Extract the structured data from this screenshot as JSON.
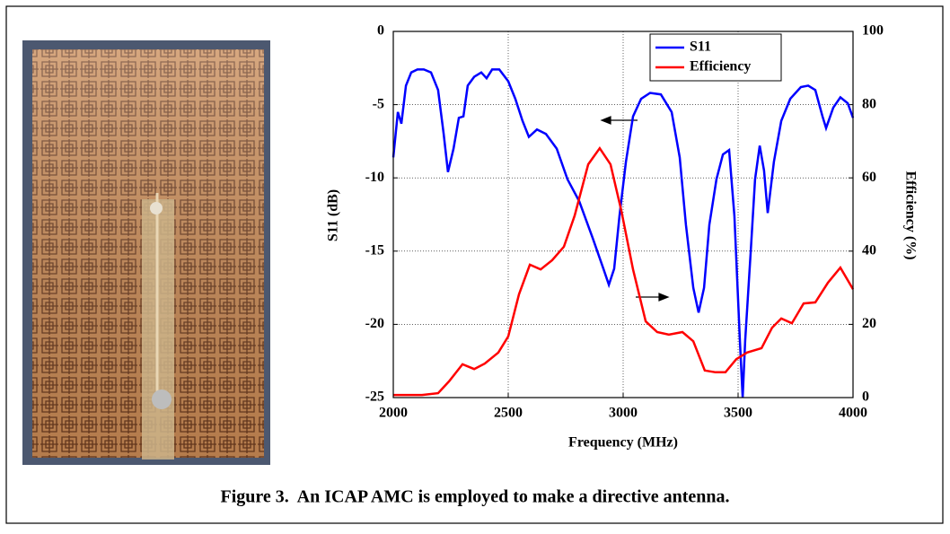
{
  "chart_data": {
    "type": "line",
    "xlabel": "Frequency (MHz)",
    "ylabel": "S11 (dB)",
    "y2label": "Efficiency (%)",
    "xlim": [
      2000,
      4000
    ],
    "xticks": [
      2000,
      2500,
      3000,
      3500,
      4000
    ],
    "ylim": [
      -25,
      0
    ],
    "yticks": [
      0,
      -5,
      -10,
      -15,
      -20,
      -25
    ],
    "y2lim": [
      0,
      100
    ],
    "y2ticks": [
      0,
      20,
      40,
      60,
      80,
      100
    ],
    "grid": true,
    "legend": "top-right",
    "series": [
      {
        "name": "S11",
        "color": "#0000ff",
        "x": [
          2000,
          2020,
          2035,
          2055,
          2078,
          2105,
          2133,
          2164,
          2195,
          2219,
          2238,
          2262,
          2285,
          2305,
          2324,
          2352,
          2383,
          2406,
          2430,
          2461,
          2500,
          2531,
          2562,
          2590,
          2625,
          2664,
          2711,
          2758,
          2809,
          2867,
          2914,
          2938,
          2961,
          2984,
          3012,
          3043,
          3078,
          3117,
          3164,
          3211,
          3246,
          3273,
          3305,
          3328,
          3352,
          3375,
          3406,
          3434,
          3461,
          3484,
          3508,
          3520,
          3531,
          3555,
          3574,
          3594,
          3613,
          3629,
          3656,
          3688,
          3727,
          3773,
          3805,
          3836,
          3867,
          3883,
          3914,
          3945,
          3977,
          4000
        ],
        "values": [
          -8.6,
          -5.5,
          -6.3,
          -3.7,
          -2.8,
          -2.6,
          -2.6,
          -2.8,
          -4.0,
          -7.0,
          -9.6,
          -8.0,
          -5.9,
          -5.8,
          -3.7,
          -3.1,
          -2.8,
          -3.2,
          -2.6,
          -2.6,
          -3.4,
          -4.6,
          -6.1,
          -7.2,
          -6.7,
          -7.0,
          -8.0,
          -10.1,
          -11.6,
          -14.1,
          -16.2,
          -17.3,
          -16.2,
          -12.6,
          -8.9,
          -5.8,
          -4.6,
          -4.2,
          -4.3,
          -5.5,
          -8.6,
          -13.2,
          -17.5,
          -19.2,
          -17.5,
          -13.2,
          -10.1,
          -8.4,
          -8.1,
          -12.6,
          -21.1,
          -25,
          -21.1,
          -15.0,
          -10.1,
          -7.8,
          -9.5,
          -12.4,
          -8.9,
          -6.1,
          -4.6,
          -3.8,
          -3.7,
          -4.0,
          -5.8,
          -6.6,
          -5.2,
          -4.5,
          -4.9,
          -5.9
        ]
      },
      {
        "name": "Efficiency",
        "color": "#ff0000",
        "axis": "y2",
        "x": [
          2000,
          2125,
          2195,
          2242,
          2301,
          2352,
          2398,
          2457,
          2500,
          2547,
          2594,
          2641,
          2691,
          2742,
          2789,
          2848,
          2898,
          2945,
          2992,
          3043,
          3098,
          3148,
          3199,
          3258,
          3305,
          3355,
          3402,
          3445,
          3492,
          3539,
          3602,
          3648,
          3688,
          3734,
          3785,
          3836,
          3891,
          3945,
          4000
        ],
        "values": [
          0.7,
          0.7,
          1.2,
          4.4,
          9.1,
          7.8,
          9.3,
          12.3,
          16.7,
          28.2,
          36.3,
          35.0,
          37.5,
          41.2,
          49.7,
          63.7,
          68.1,
          63.7,
          51.0,
          35.0,
          20.8,
          17.9,
          17.2,
          17.9,
          15.4,
          7.4,
          6.9,
          6.9,
          10.5,
          12.3,
          13.5,
          19.1,
          21.6,
          20.3,
          25.7,
          26.0,
          31.4,
          35.5,
          29.6
        ]
      }
    ]
  },
  "caption": "Figure 3.  An ICAP AMC is employed to make a directive antenna."
}
